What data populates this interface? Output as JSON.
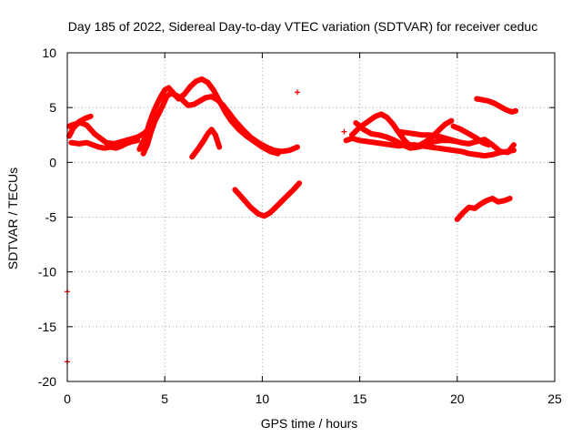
{
  "chart_data": {
    "type": "scatter",
    "title": "Day 185 of 2022, Sidereal Day-to-day VTEC variation (SDTVAR) for receiver ceduc",
    "xlabel": "GPS time / hours",
    "ylabel": "SDTVAR / TECUs",
    "xlim": [
      0,
      25
    ],
    "ylim": [
      -20,
      10
    ],
    "xticks": [
      "0",
      "5",
      "10",
      "15",
      "20",
      "25"
    ],
    "yticks": [
      "-20",
      "-15",
      "-10",
      "-5",
      "0",
      "5",
      "10"
    ],
    "grid": true,
    "series_color": "#ff0000",
    "series": [
      {
        "name": "s1",
        "x": [
          0.2,
          0.6,
          1.0,
          1.3,
          1.6,
          1.9,
          2.2,
          2.5,
          2.8,
          3.0,
          3.3,
          3.6
        ],
        "y": [
          1.8,
          1.7,
          1.8,
          1.6,
          1.4,
          1.3,
          1.4,
          1.3,
          1.5,
          1.7,
          1.9,
          2.0
        ]
      },
      {
        "name": "s2",
        "x": [
          0.1,
          0.4,
          0.7,
          1.0,
          1.2,
          1.4,
          1.7,
          2.0,
          2.4,
          2.8,
          3.2,
          3.6,
          3.9,
          4.1
        ],
        "y": [
          3.3,
          3.5,
          3.6,
          3.4,
          3.0,
          2.6,
          2.2,
          1.8,
          1.7,
          1.9,
          2.1,
          2.3,
          2.6,
          2.9
        ]
      },
      {
        "name": "s3",
        "x": [
          0.1,
          0.3,
          0.6,
          0.9,
          1.2
        ],
        "y": [
          2.4,
          3.1,
          3.7,
          4.0,
          4.2
        ]
      },
      {
        "name": "s4",
        "x": [
          3.9,
          4.1,
          4.3,
          4.5,
          4.7,
          4.9,
          5.1,
          5.3,
          5.6,
          5.9,
          6.2,
          6.5,
          6.8,
          7.1,
          7.4,
          7.7,
          8.0,
          8.3,
          8.6,
          9.0,
          9.4,
          9.8,
          10.2,
          10.6,
          11.0,
          11.4,
          11.8
        ],
        "y": [
          0.8,
          1.6,
          2.8,
          3.8,
          4.5,
          5.2,
          6.0,
          6.3,
          6.1,
          5.7,
          5.2,
          5.3,
          5.6,
          5.9,
          6.0,
          5.7,
          5.2,
          4.5,
          3.8,
          3.0,
          2.3,
          1.8,
          1.4,
          1.1,
          1.0,
          1.1,
          1.4
        ]
      },
      {
        "name": "s5",
        "x": [
          3.7,
          4.0,
          4.2,
          4.4,
          4.6,
          4.8,
          5.0,
          5.2,
          5.4,
          5.7,
          6.0,
          6.3,
          6.6,
          6.9,
          7.2,
          7.5,
          7.8,
          8.1,
          8.4,
          8.8,
          9.2,
          9.6,
          10.0,
          10.4,
          10.8
        ],
        "y": [
          1.2,
          2.3,
          3.5,
          4.5,
          5.3,
          6.0,
          6.6,
          6.8,
          6.4,
          5.8,
          6.2,
          6.9,
          7.4,
          7.6,
          7.3,
          6.6,
          5.6,
          4.6,
          3.8,
          3.0,
          2.4,
          1.9,
          1.4,
          1.0,
          0.8
        ]
      },
      {
        "name": "s6",
        "x": [
          6.4,
          6.7,
          7.0,
          7.2,
          7.4,
          7.6,
          7.8
        ],
        "y": [
          0.5,
          1.2,
          2.0,
          2.6,
          3.0,
          2.5,
          1.4
        ]
      },
      {
        "name": "s7",
        "x": [
          8.6,
          9.0,
          9.4,
          9.8,
          10.1,
          10.4,
          10.8,
          11.2,
          11.6,
          11.9
        ],
        "y": [
          -2.5,
          -3.3,
          -4.1,
          -4.7,
          -4.9,
          -4.6,
          -3.9,
          -3.2,
          -2.5,
          -1.9
        ]
      },
      {
        "name": "s8",
        "x": [
          14.3,
          14.6,
          15.0,
          15.4,
          15.8,
          16.2,
          16.6,
          17.0,
          17.4,
          17.8,
          18.2,
          18.6,
          19.0,
          19.4,
          19.8,
          20.2,
          20.6,
          21.0,
          21.4,
          21.8,
          22.2,
          22.6,
          22.9
        ],
        "y": [
          2.0,
          2.2,
          2.0,
          1.9,
          1.8,
          1.7,
          1.6,
          1.5,
          1.6,
          1.6,
          1.5,
          1.4,
          1.3,
          1.2,
          1.1,
          1.0,
          0.8,
          0.7,
          0.6,
          0.7,
          0.9,
          1.0,
          1.1
        ]
      },
      {
        "name": "s9",
        "x": [
          14.6,
          15.0,
          15.4,
          15.8,
          16.1,
          16.4,
          16.7,
          17.0,
          17.3,
          17.6,
          18.0,
          18.4,
          18.8,
          19.1,
          19.4,
          19.7
        ],
        "y": [
          2.5,
          3.2,
          3.7,
          4.2,
          4.4,
          4.1,
          3.5,
          2.7,
          2.0,
          1.5,
          1.5,
          1.9,
          2.5,
          3.0,
          3.5,
          3.8
        ]
      },
      {
        "name": "s10",
        "x": [
          14.8,
          15.2,
          15.6,
          16.0,
          16.4,
          16.8,
          17.2,
          17.6,
          18.0,
          18.4,
          18.8,
          19.2,
          19.6,
          20.0
        ],
        "y": [
          3.6,
          3.0,
          2.6,
          2.5,
          2.3,
          2.0,
          1.6,
          1.3,
          1.4,
          1.6,
          1.9,
          2.0,
          2.0,
          1.9
        ]
      },
      {
        "name": "s11",
        "x": [
          17.0,
          17.4,
          17.8,
          18.2,
          18.6,
          19.0,
          19.4,
          19.8,
          20.2,
          20.6,
          21.0,
          21.4,
          21.8,
          22.2,
          22.6,
          22.9
        ],
        "y": [
          2.8,
          2.7,
          2.6,
          2.5,
          2.5,
          2.4,
          2.2,
          2.0,
          1.8,
          1.7,
          1.9,
          2.1,
          1.6,
          1.0,
          0.9,
          1.6
        ]
      },
      {
        "name": "s12",
        "x": [
          19.8,
          20.2,
          20.6,
          21.0,
          21.3,
          21.6
        ],
        "y": [
          3.3,
          3.0,
          2.6,
          2.2,
          1.8,
          1.6
        ]
      },
      {
        "name": "s13",
        "x": [
          20.0,
          20.3,
          20.6,
          20.9,
          21.2,
          21.5,
          21.8,
          22.1,
          22.4,
          22.7
        ],
        "y": [
          -5.2,
          -4.6,
          -4.1,
          -4.2,
          -3.8,
          -3.5,
          -3.3,
          -3.6,
          -3.5,
          -3.3
        ]
      },
      {
        "name": "s14",
        "x": [
          21.0,
          21.3,
          21.6,
          21.9,
          22.2,
          22.5,
          22.8,
          23.0
        ],
        "y": [
          5.8,
          5.7,
          5.6,
          5.4,
          5.1,
          4.8,
          4.6,
          4.7
        ]
      }
    ],
    "isolated_points": [
      {
        "x": 11.8,
        "y": 6.4
      },
      {
        "x": 14.2,
        "y": 2.8
      },
      {
        "x": 0.0,
        "y": -11.8
      },
      {
        "x": 0.0,
        "y": -18.2
      }
    ]
  }
}
